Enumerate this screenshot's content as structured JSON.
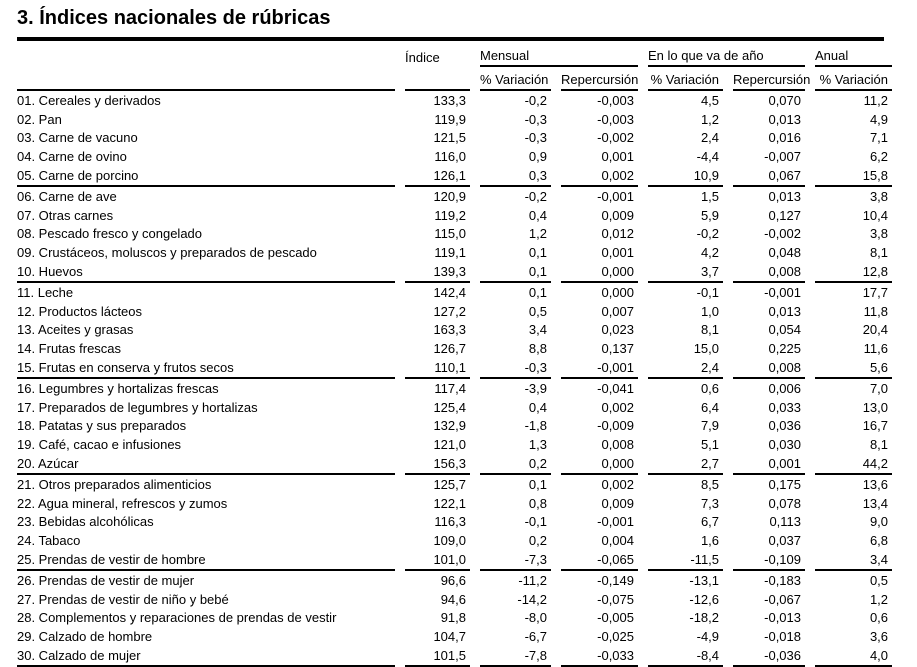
{
  "title": "3. Índices nacionales de rúbricas",
  "table": {
    "header": {
      "indice": "Índice",
      "mensual": "Mensual",
      "ytd": "En lo que va de año",
      "anual": "Anual",
      "variacion": "% Variación",
      "repercusion": "Repercursión"
    },
    "rows": [
      {
        "label": "01. Cereales y derivados",
        "values": [
          "133,3",
          "-0,2",
          "-0,003",
          "4,5",
          "0,070",
          "11,2"
        ]
      },
      {
        "label": "02. Pan",
        "values": [
          "119,9",
          "-0,3",
          "-0,003",
          "1,2",
          "0,013",
          "4,9"
        ]
      },
      {
        "label": "03. Carne de vacuno",
        "values": [
          "121,5",
          "-0,3",
          "-0,002",
          "2,4",
          "0,016",
          "7,1"
        ]
      },
      {
        "label": "04. Carne de ovino",
        "values": [
          "116,0",
          "0,9",
          "0,001",
          "-4,4",
          "-0,007",
          "6,2"
        ]
      },
      {
        "label": "05. Carne de porcino",
        "values": [
          "126,1",
          "0,3",
          "0,002",
          "10,9",
          "0,067",
          "15,8"
        ]
      },
      {
        "label": "06. Carne de ave",
        "values": [
          "120,9",
          "-0,2",
          "-0,001",
          "1,5",
          "0,013",
          "3,8"
        ]
      },
      {
        "label": "07. Otras carnes",
        "values": [
          "119,2",
          "0,4",
          "0,009",
          "5,9",
          "0,127",
          "10,4"
        ]
      },
      {
        "label": "08. Pescado fresco y congelado",
        "values": [
          "115,0",
          "1,2",
          "0,012",
          "-0,2",
          "-0,002",
          "3,8"
        ]
      },
      {
        "label": "09. Crustáceos, moluscos y preparados de pescado",
        "values": [
          "119,1",
          "0,1",
          "0,001",
          "4,2",
          "0,048",
          "8,1"
        ]
      },
      {
        "label": "10. Huevos",
        "values": [
          "139,3",
          "0,1",
          "0,000",
          "3,7",
          "0,008",
          "12,8"
        ]
      },
      {
        "label": "11. Leche",
        "values": [
          "142,4",
          "0,1",
          "0,000",
          "-0,1",
          "-0,001",
          "17,7"
        ]
      },
      {
        "label": "12. Productos lácteos",
        "values": [
          "127,2",
          "0,5",
          "0,007",
          "1,0",
          "0,013",
          "11,8"
        ]
      },
      {
        "label": "13. Aceites y grasas",
        "values": [
          "163,3",
          "3,4",
          "0,023",
          "8,1",
          "0,054",
          "20,4"
        ]
      },
      {
        "label": "14. Frutas frescas",
        "values": [
          "126,7",
          "8,8",
          "0,137",
          "15,0",
          "0,225",
          "11,6"
        ]
      },
      {
        "label": "15. Frutas en conserva y frutos secos",
        "values": [
          "110,1",
          "-0,3",
          "-0,001",
          "2,4",
          "0,008",
          "5,6"
        ]
      },
      {
        "label": "16. Legumbres y hortalizas frescas",
        "values": [
          "117,4",
          "-3,9",
          "-0,041",
          "0,6",
          "0,006",
          "7,0"
        ]
      },
      {
        "label": "17. Preparados de legumbres y hortalizas",
        "values": [
          "125,4",
          "0,4",
          "0,002",
          "6,4",
          "0,033",
          "13,0"
        ]
      },
      {
        "label": "18. Patatas y sus preparados",
        "values": [
          "132,9",
          "-1,8",
          "-0,009",
          "7,9",
          "0,036",
          "16,7"
        ]
      },
      {
        "label": "19. Café, cacao e infusiones",
        "values": [
          "121,0",
          "1,3",
          "0,008",
          "5,1",
          "0,030",
          "8,1"
        ]
      },
      {
        "label": "20. Azúcar",
        "values": [
          "156,3",
          "0,2",
          "0,000",
          "2,7",
          "0,001",
          "44,2"
        ]
      },
      {
        "label": "21. Otros preparados alimenticios",
        "values": [
          "125,7",
          "0,1",
          "0,002",
          "8,5",
          "0,175",
          "13,6"
        ]
      },
      {
        "label": "22. Agua mineral, refrescos y zumos",
        "values": [
          "122,1",
          "0,8",
          "0,009",
          "7,3",
          "0,078",
          "13,4"
        ]
      },
      {
        "label": "23. Bebidas alcohólicas",
        "values": [
          "116,3",
          "-0,1",
          "-0,001",
          "6,7",
          "0,113",
          "9,0"
        ]
      },
      {
        "label": "24. Tabaco",
        "values": [
          "109,0",
          "0,2",
          "0,004",
          "1,6",
          "0,037",
          "6,8"
        ]
      },
      {
        "label": "25. Prendas de vestir de hombre",
        "values": [
          "101,0",
          "-7,3",
          "-0,065",
          "-11,5",
          "-0,109",
          "3,4"
        ]
      },
      {
        "label": "26. Prendas de vestir de mujer",
        "values": [
          "96,6",
          "-11,2",
          "-0,149",
          "-13,1",
          "-0,183",
          "0,5"
        ]
      },
      {
        "label": "27. Prendas de vestir de niño y bebé",
        "values": [
          "94,6",
          "-14,2",
          "-0,075",
          "-12,6",
          "-0,067",
          "1,2"
        ]
      },
      {
        "label": "28. Complementos y reparaciones de prendas de vestir",
        "values": [
          "91,8",
          "-8,0",
          "-0,005",
          "-18,2",
          "-0,013",
          "0,6"
        ]
      },
      {
        "label": "29. Calzado de hombre",
        "values": [
          "104,7",
          "-6,7",
          "-0,025",
          "-4,9",
          "-0,018",
          "3,6"
        ]
      },
      {
        "label": "30. Calzado de mujer",
        "values": [
          "101,5",
          "-7,8",
          "-0,033",
          "-8,4",
          "-0,036",
          "4,0"
        ]
      }
    ]
  }
}
